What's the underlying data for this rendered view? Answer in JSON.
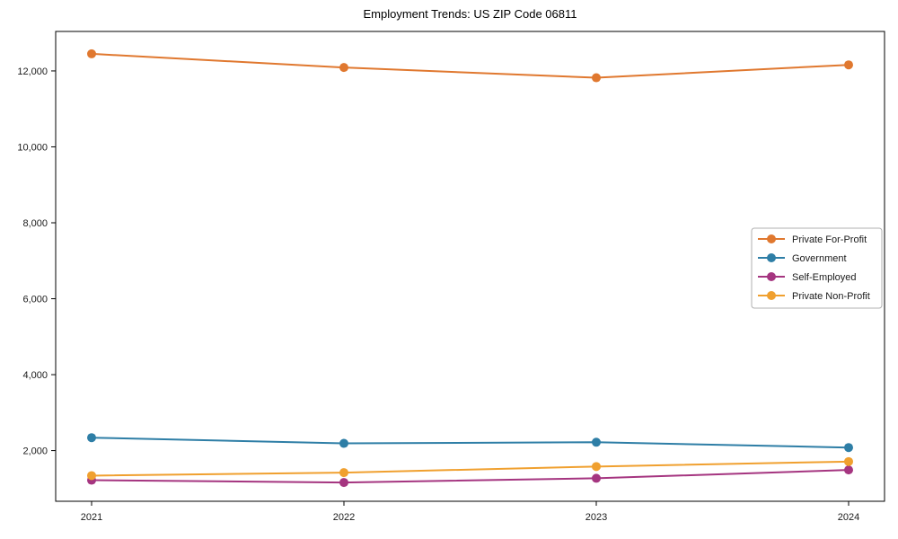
{
  "title": "Employment Trends: US ZIP Code 06811",
  "chart_data": {
    "type": "line",
    "title": "Employment Trends: US ZIP Code 06811",
    "xlabel": "",
    "ylabel": "",
    "x": [
      "2021",
      "2022",
      "2023",
      "2024"
    ],
    "series": [
      {
        "name": "Private For-Profit",
        "color": "#E0782F",
        "values": [
          12450,
          12090,
          11820,
          12160
        ]
      },
      {
        "name": "Government",
        "color": "#2E7EA6",
        "values": [
          2340,
          2190,
          2220,
          2080
        ]
      },
      {
        "name": "Self-Employed",
        "color": "#A53580",
        "values": [
          1220,
          1160,
          1270,
          1490
        ]
      },
      {
        "name": "Private Non-Profit",
        "color": "#F0A02F",
        "values": [
          1340,
          1420,
          1580,
          1710
        ]
      }
    ],
    "ylim": [
      665,
      13040
    ],
    "yticks": [
      2000,
      4000,
      6000,
      8000,
      10000,
      12000
    ],
    "ytick_labels": [
      "2,000",
      "4,000",
      "6,000",
      "8,000",
      "10,000",
      "12,000"
    ],
    "grid": false,
    "legend_position": "center-right",
    "axis_color": "#000000",
    "legend_border_color": "#b0b0b0"
  }
}
